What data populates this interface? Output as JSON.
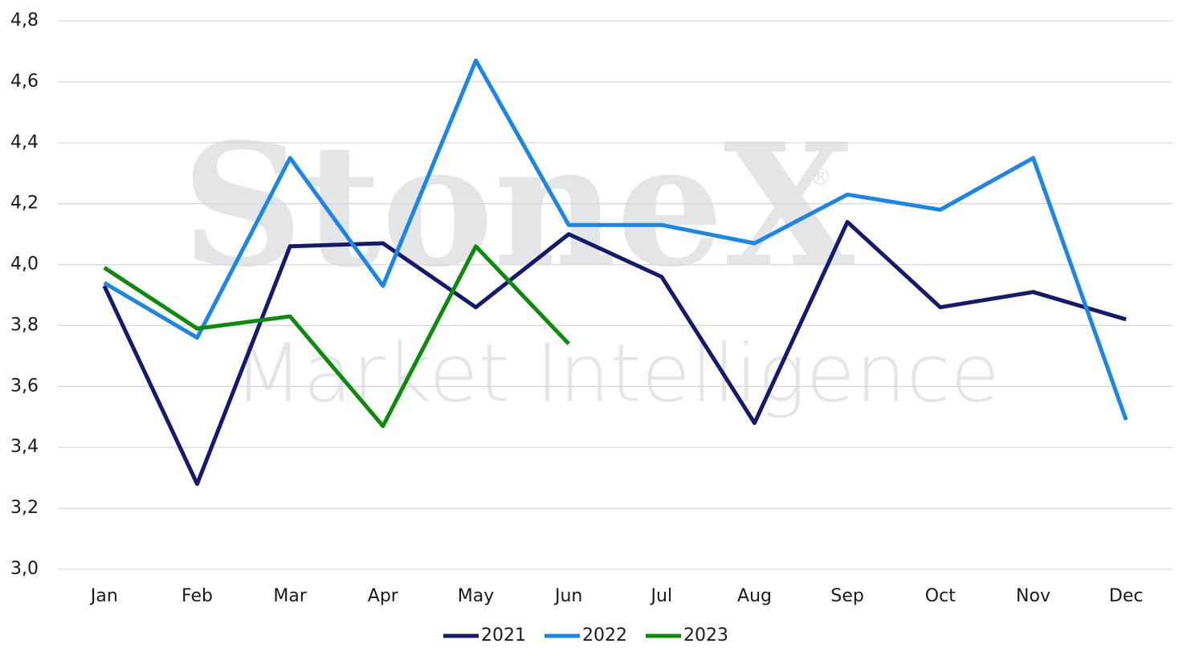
{
  "chart_data": {
    "type": "line",
    "watermark": {
      "brand": "StoneX",
      "mark": "®",
      "subtitle": "Market Intelligence"
    },
    "categories": [
      "Jan",
      "Feb",
      "Mar",
      "Apr",
      "May",
      "Jun",
      "Jul",
      "Aug",
      "Sep",
      "Oct",
      "Nov",
      "Dec"
    ],
    "series": [
      {
        "name": "2021",
        "color": "#141b6e",
        "values": [
          3.93,
          3.28,
          4.06,
          4.07,
          3.86,
          4.1,
          3.96,
          3.48,
          4.14,
          3.86,
          3.91,
          3.82
        ]
      },
      {
        "name": "2022",
        "color": "#1b86e6",
        "values": [
          3.94,
          3.76,
          4.35,
          3.93,
          4.67,
          4.13,
          4.13,
          4.07,
          4.23,
          4.18,
          4.35,
          3.49
        ]
      },
      {
        "name": "2023",
        "color": "#0b8a0b",
        "values": [
          3.99,
          3.79,
          3.83,
          3.47,
          4.06,
          3.74,
          null,
          null,
          null,
          null,
          null,
          null
        ]
      }
    ],
    "ylim": [
      3.0,
      4.8
    ],
    "yticks": [
      {
        "value": 3.0,
        "label": "3,0"
      },
      {
        "value": 3.2,
        "label": "3,2"
      },
      {
        "value": 3.4,
        "label": "3,4"
      },
      {
        "value": 3.6,
        "label": "3,6"
      },
      {
        "value": 3.8,
        "label": "3,8"
      },
      {
        "value": 4.0,
        "label": "4,0"
      },
      {
        "value": 4.2,
        "label": "4,2"
      },
      {
        "value": 4.4,
        "label": "4,4"
      },
      {
        "value": 4.6,
        "label": "4,6"
      },
      {
        "value": 4.8,
        "label": "4,8"
      }
    ],
    "grid": true,
    "legend": "bottom"
  }
}
